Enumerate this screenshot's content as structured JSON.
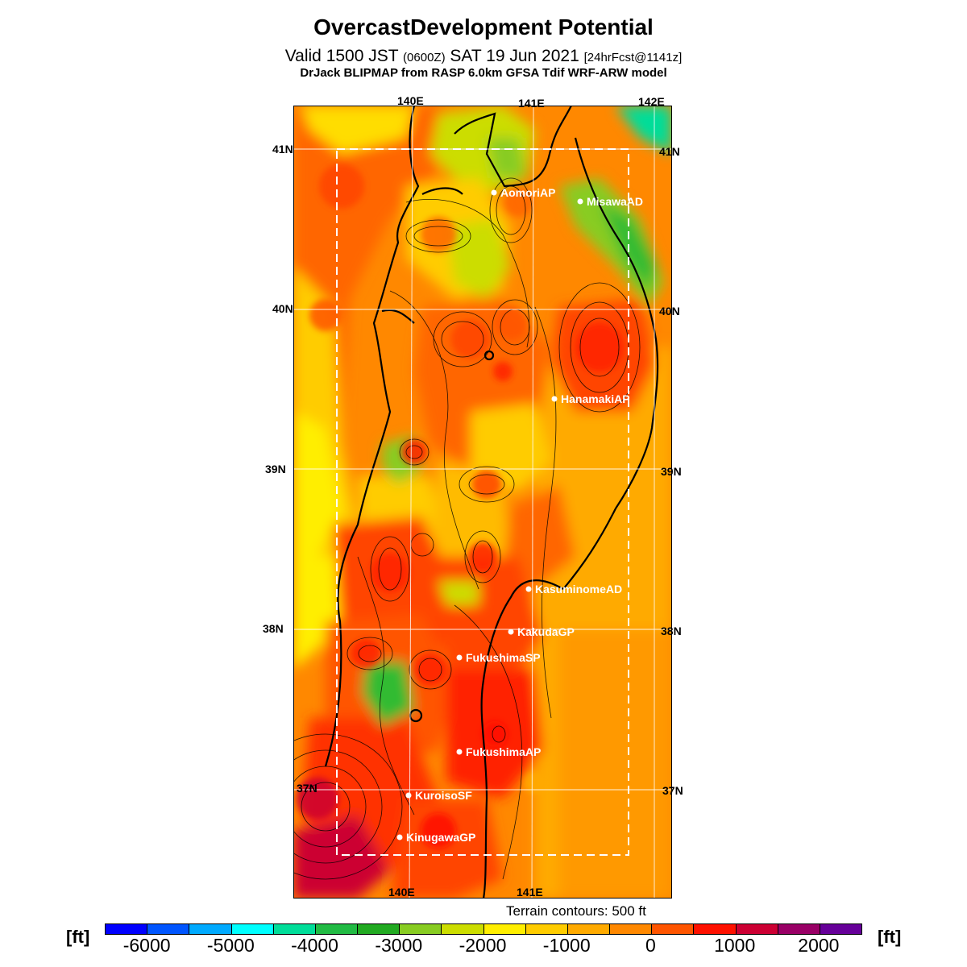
{
  "header": {
    "title": "OvercastDevelopment Potential",
    "valid_prefix": "Valid 1500 JST",
    "valid_zulu": "(0600Z)",
    "valid_date": "SAT 19 Jun 2021",
    "forecast_tag": "[24hrFcst@1141z]",
    "model_credit": "DrJack BLIPMAP from RASP 6.0km GFSA Tdif WRF-ARW model"
  },
  "map": {
    "lon_labels_top": [
      "140E",
      "141E",
      "142E"
    ],
    "lon_labels_bottom": [
      "140E",
      "141E"
    ],
    "lat_labels_left": [
      "41N",
      "40N",
      "39N",
      "38N",
      "37N"
    ],
    "lat_labels_right": [
      "41N",
      "40N",
      "39N",
      "38N",
      "37N"
    ],
    "stations": [
      {
        "name": "AomoriAP"
      },
      {
        "name": "MisawaAD"
      },
      {
        "name": "HanamakiAP"
      },
      {
        "name": "KasuminomeAD"
      },
      {
        "name": "KakudaGP"
      },
      {
        "name": "FukushimaSP"
      },
      {
        "name": "FukushimaAP"
      },
      {
        "name": "KuroisoSF"
      },
      {
        "name": "KinugawaGP"
      }
    ]
  },
  "terrain_note": "Terrain contours: 500 ft",
  "colorbar": {
    "unit": "[ft]",
    "colors": [
      "#0000ff",
      "#0055ff",
      "#00aaff",
      "#00ffff",
      "#00dd99",
      "#22bb44",
      "#22aa22",
      "#88cc22",
      "#ccdd00",
      "#ffee00",
      "#ffcc00",
      "#ffaa00",
      "#ff8800",
      "#ff5500",
      "#ff1100",
      "#cc0033",
      "#990066",
      "#660099"
    ],
    "ticks": [
      "-6000",
      "-5000",
      "-4000",
      "-3000",
      "-2000",
      "-1000",
      "0",
      "1000",
      "2000"
    ]
  }
}
